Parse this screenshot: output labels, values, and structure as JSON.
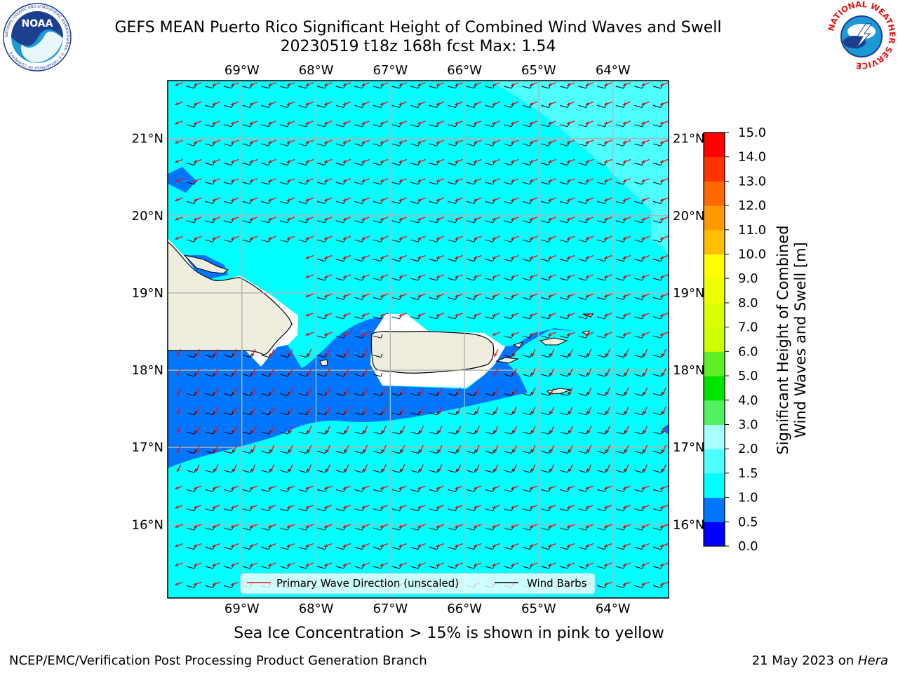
{
  "title": {
    "line1": "GEFS MEAN Puerto Rico Significant Height of Combined Wind Waves and Swell",
    "line2": "20230519 t18z 168h fcst   Max: 1.54"
  },
  "logos": {
    "left": {
      "icon": "noaa-logo-icon",
      "text": "NOAA",
      "ring_text": "NATIONAL OCEANIC AND ATMOSPHERIC ADMINISTRATION · U.S. DEPARTMENT OF COMMERCE"
    },
    "right": {
      "icon": "nws-logo-icon",
      "ring_text": "NATIONAL WEATHER SERVICE"
    }
  },
  "map": {
    "lon_labels": [
      "69°W",
      "68°W",
      "67°W",
      "66°W",
      "65°W",
      "64°W"
    ],
    "lat_labels": [
      "21°N",
      "20°N",
      "19°N",
      "18°N",
      "17°N",
      "16°N"
    ],
    "lon_values": [
      -69,
      -68,
      -67,
      -66,
      -65,
      -64
    ],
    "lat_values": [
      21,
      20,
      19,
      18,
      17,
      16
    ],
    "lon_range": [
      -70,
      -63.25
    ],
    "lat_range": [
      15.05,
      21.75
    ],
    "land_color": "#efedde",
    "coast_color": "#000000",
    "grid": true,
    "grid_color": "#b3b3b3",
    "wave_arrow_color": "#e8110f",
    "wind_barb_color": "#000000",
    "legend": {
      "placement": "bottom-center",
      "items": [
        {
          "label": "Primary Wave Direction (unscaled)",
          "color": "#e8110f"
        },
        {
          "label": "Wind Barbs",
          "color": "#000000"
        }
      ]
    }
  },
  "colorbar": {
    "label_line1": "Significant Height of Combined",
    "label_line2": "Wind Waves and Swell [m]",
    "bins": [
      {
        "min": 0.0,
        "max": 0.5,
        "color": "#0000ff"
      },
      {
        "min": 0.5,
        "max": 1.0,
        "color": "#0076ff"
      },
      {
        "min": 1.0,
        "max": 1.5,
        "color": "#00ffff"
      },
      {
        "min": 1.5,
        "max": 2.0,
        "color": "#4effff"
      },
      {
        "min": 2.0,
        "max": 3.0,
        "color": "#a8ffff"
      },
      {
        "min": 3.0,
        "max": 4.0,
        "color": "#50f060"
      },
      {
        "min": 4.0,
        "max": 5.0,
        "color": "#00e400"
      },
      {
        "min": 5.0,
        "max": 6.0,
        "color": "#60ee22"
      },
      {
        "min": 6.0,
        "max": 7.0,
        "color": "#cdff00"
      },
      {
        "min": 7.0,
        "max": 8.0,
        "color": "#dcff00"
      },
      {
        "min": 8.0,
        "max": 9.0,
        "color": "#edff00"
      },
      {
        "min": 9.0,
        "max": 10.0,
        "color": "#ffff00"
      },
      {
        "min": 10.0,
        "max": 11.0,
        "color": "#ffbe00"
      },
      {
        "min": 11.0,
        "max": 12.0,
        "color": "#ff9900"
      },
      {
        "min": 12.0,
        "max": 13.0,
        "color": "#ff6a00"
      },
      {
        "min": 13.0,
        "max": 14.0,
        "color": "#ff3300"
      },
      {
        "min": 14.0,
        "max": 15.0,
        "color": "#ff0000"
      }
    ],
    "tick_labels": [
      "0.0",
      "0.5",
      "1.0",
      "1.5",
      "2.0",
      "3.0",
      "4.0",
      "5.0",
      "6.0",
      "7.0",
      "8.0",
      "9.0",
      "10.0",
      "11.0",
      "12.0",
      "13.0",
      "14.0",
      "15.0"
    ]
  },
  "ice_note": "Sea Ice Concentration > 15% is shown in pink to yellow",
  "footer": {
    "left": "NCEP/EMC/Verification Post Processing Product Generation Branch",
    "right_prefix": "21 May 2023 on ",
    "right_machine": "Hera"
  }
}
